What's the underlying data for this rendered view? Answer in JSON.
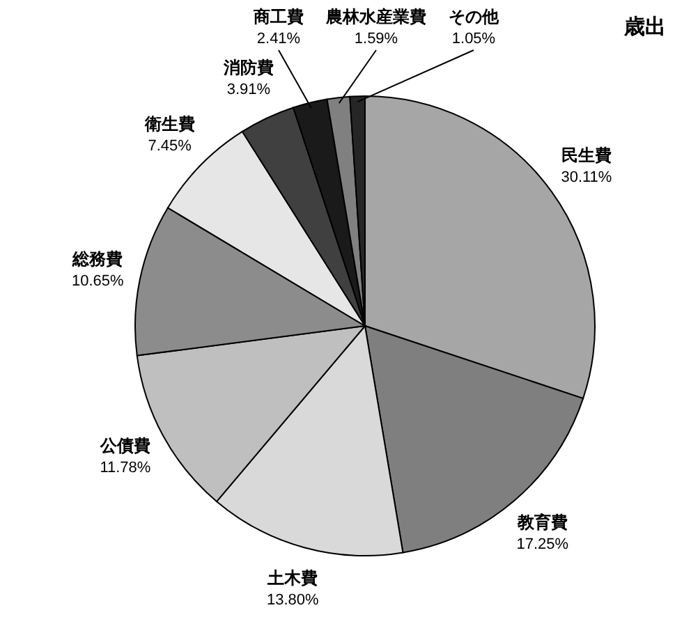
{
  "chart_data": {
    "type": "pie",
    "title": "歳出",
    "categories": [
      "民生費",
      "教育費",
      "土木費",
      "公債費",
      "総務費",
      "衛生費",
      "消防費",
      "商工費",
      "農林水産業費",
      "その他"
    ],
    "values": [
      30.11,
      17.25,
      13.8,
      11.78,
      10.65,
      7.45,
      3.91,
      2.41,
      1.59,
      1.05
    ],
    "value_labels": [
      "30.11%",
      "17.25%",
      "13.80%",
      "11.78%",
      "10.65%",
      "7.45%",
      "3.91%",
      "2.41%",
      "1.59%",
      "1.05%"
    ],
    "colors": [
      "#a6a6a6",
      "#7f7f7f",
      "#d9d9d9",
      "#bfbfbf",
      "#8c8c8c",
      "#e6e6e6",
      "#404040",
      "#1a1a1a",
      "#808080",
      "#262626"
    ]
  }
}
